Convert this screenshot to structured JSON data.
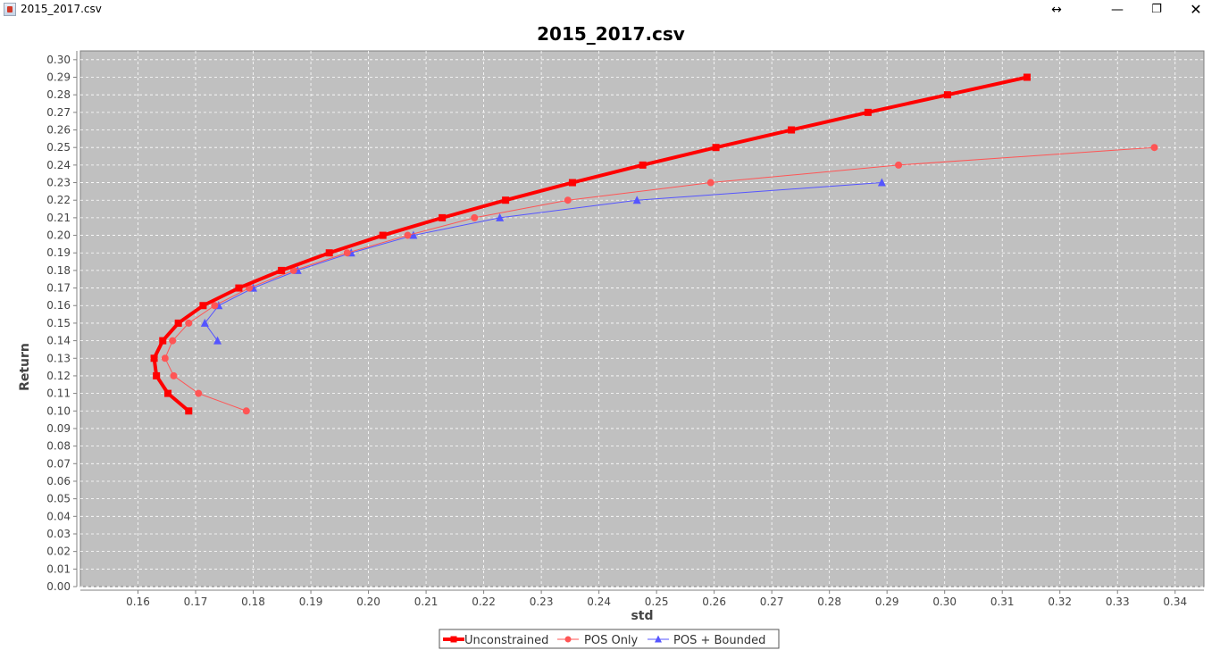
{
  "window": {
    "title": "2015_2017.csv",
    "icons": {
      "app": "java-app-icon",
      "resize": "resize-arrows-icon",
      "minimize": "minimize-icon",
      "restore": "restore-icon",
      "close": "close-icon"
    }
  },
  "chart_data": {
    "type": "line",
    "title": "2015_2017.csv",
    "xlabel": "std",
    "ylabel": "Return",
    "xlim": [
      0.15,
      0.345
    ],
    "ylim": [
      0.0,
      0.305
    ],
    "xticks": [
      0.16,
      0.17,
      0.18,
      0.19,
      0.2,
      0.21,
      0.22,
      0.23,
      0.24,
      0.25,
      0.26,
      0.27,
      0.28,
      0.29,
      0.3,
      0.31,
      0.32,
      0.33,
      0.34
    ],
    "yticks": [
      0.0,
      0.01,
      0.02,
      0.03,
      0.04,
      0.05,
      0.06,
      0.07,
      0.08,
      0.09,
      0.1,
      0.11,
      0.12,
      0.13,
      0.14,
      0.15,
      0.16,
      0.17,
      0.18,
      0.19,
      0.2,
      0.21,
      0.22,
      0.23,
      0.24,
      0.25,
      0.26,
      0.27,
      0.28,
      0.29,
      0.3
    ],
    "grid": true,
    "legend_position": "bottom",
    "plot_background": "#c0c0c0",
    "series": [
      {
        "name": "Unconstrained",
        "color": "#ff0000",
        "marker": "square",
        "points": [
          [
            0.1688,
            0.1
          ],
          [
            0.1652,
            0.11
          ],
          [
            0.1632,
            0.12
          ],
          [
            0.1628,
            0.13
          ],
          [
            0.1643,
            0.14
          ],
          [
            0.167,
            0.15
          ],
          [
            0.1713,
            0.16
          ],
          [
            0.1775,
            0.17
          ],
          [
            0.1849,
            0.18
          ],
          [
            0.1932,
            0.19
          ],
          [
            0.2025,
            0.2
          ],
          [
            0.2128,
            0.21
          ],
          [
            0.2238,
            0.22
          ],
          [
            0.2354,
            0.23
          ],
          [
            0.2476,
            0.24
          ],
          [
            0.2603,
            0.25
          ],
          [
            0.2734,
            0.26
          ],
          [
            0.2867,
            0.27
          ],
          [
            0.3005,
            0.28
          ],
          [
            0.3143,
            0.29
          ]
        ]
      },
      {
        "name": "POS Only",
        "color": "#ff5555",
        "marker": "circle",
        "points": [
          [
            0.1788,
            0.1
          ],
          [
            0.1705,
            0.11
          ],
          [
            0.1662,
            0.12
          ],
          [
            0.1647,
            0.13
          ],
          [
            0.166,
            0.14
          ],
          [
            0.1688,
            0.15
          ],
          [
            0.1733,
            0.16
          ],
          [
            0.1793,
            0.17
          ],
          [
            0.187,
            0.18
          ],
          [
            0.1963,
            0.19
          ],
          [
            0.2068,
            0.2
          ],
          [
            0.2184,
            0.21
          ],
          [
            0.2346,
            0.22
          ],
          [
            0.2594,
            0.23
          ],
          [
            0.292,
            0.24
          ],
          [
            0.3364,
            0.25
          ]
        ]
      },
      {
        "name": "POS + Bounded",
        "color": "#5555ff",
        "marker": "triangle",
        "points": [
          [
            0.1738,
            0.14
          ],
          [
            0.1716,
            0.15
          ],
          [
            0.174,
            0.16
          ],
          [
            0.18,
            0.17
          ],
          [
            0.1877,
            0.18
          ],
          [
            0.197,
            0.19
          ],
          [
            0.2078,
            0.2
          ],
          [
            0.2228,
            0.21
          ],
          [
            0.2466,
            0.22
          ],
          [
            0.2891,
            0.23
          ]
        ]
      }
    ]
  }
}
